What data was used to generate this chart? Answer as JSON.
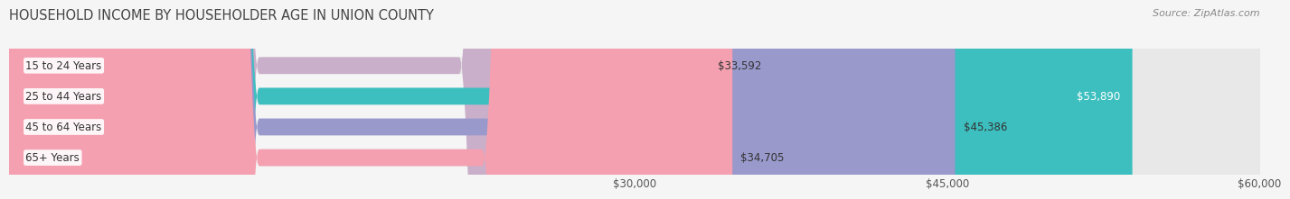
{
  "title": "HOUSEHOLD INCOME BY HOUSEHOLDER AGE IN UNION COUNTY",
  "source": "Source: ZipAtlas.com",
  "categories": [
    "15 to 24 Years",
    "25 to 44 Years",
    "45 to 64 Years",
    "65+ Years"
  ],
  "values": [
    33592,
    53890,
    45386,
    34705
  ],
  "bar_colors": [
    "#c9afc9",
    "#3dbfbf",
    "#9999cc",
    "#f4a0b0"
  ],
  "bar_bg_color": "#e8e8e8",
  "label_colors": [
    "#555555",
    "#ffffff",
    "#555555",
    "#555555"
  ],
  "xmin": 0,
  "xmax": 60000,
  "xticks": [
    30000,
    45000,
    60000
  ],
  "xtick_labels": [
    "$30,000",
    "$45,000",
    "$60,000"
  ],
  "bar_height": 0.55,
  "background_color": "#f5f5f5",
  "title_fontsize": 10.5,
  "source_fontsize": 8,
  "label_fontsize": 8.5,
  "tick_fontsize": 8.5,
  "ylabel_fontsize": 8.5
}
